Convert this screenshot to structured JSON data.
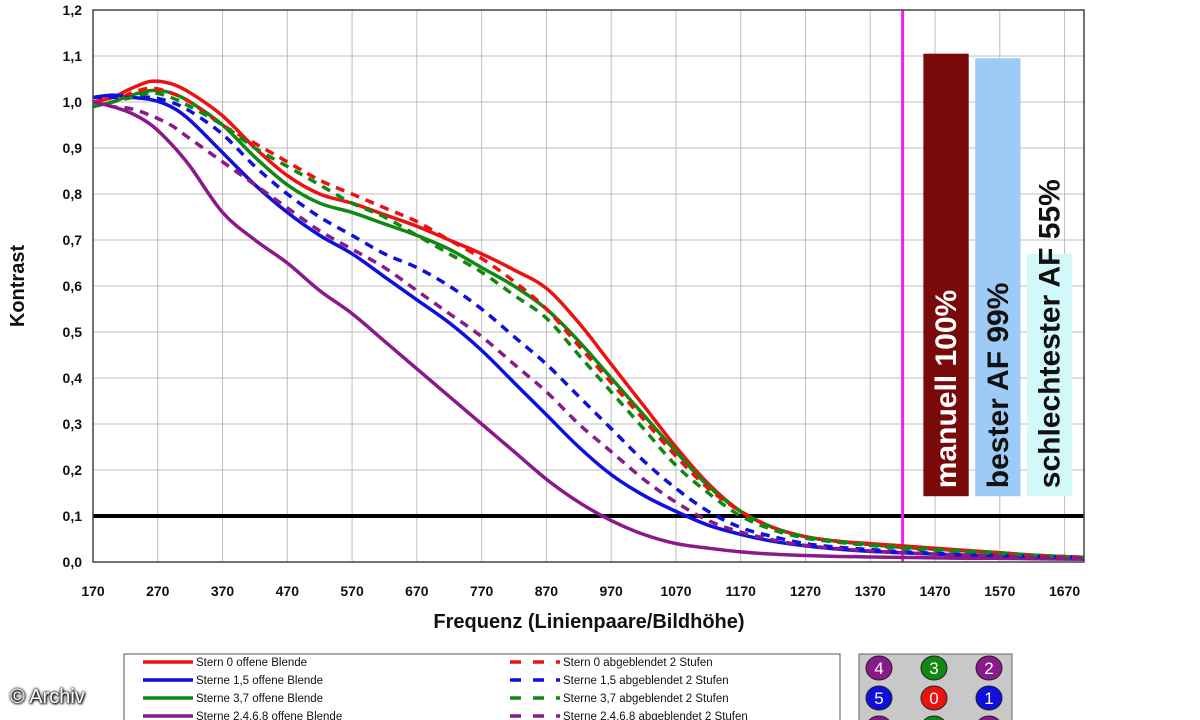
{
  "chart_data": {
    "type": "line",
    "ylabel": "Kontrast",
    "xlabel": "Frequenz (Linienpaare/Bildhöhe)",
    "xlim": [
      170,
      1700
    ],
    "ylim": [
      0,
      1.2
    ],
    "x_ticks": [
      "170",
      "270",
      "370",
      "470",
      "570",
      "670",
      "770",
      "870",
      "970",
      "1070",
      "1170",
      "1270",
      "1370",
      "1470",
      "1570",
      "1670"
    ],
    "y_ticks": [
      "0,0",
      "0,1",
      "0,2",
      "0,3",
      "0,4",
      "0,5",
      "0,6",
      "0,7",
      "0,8",
      "0,9",
      "1,0",
      "1,1",
      "1,2"
    ],
    "grid": true,
    "threshold_line": 0.1,
    "marker_line_x": 1420,
    "series": [
      {
        "name": "Stern 0 offene Blende",
        "color": "#ee1111",
        "dash": false,
        "x": [
          170,
          200,
          230,
          260,
          290,
          320,
          370,
          420,
          470,
          520,
          570,
          620,
          670,
          720,
          770,
          820,
          870,
          920,
          970,
          1020,
          1070,
          1120,
          1170,
          1220,
          1270,
          1320,
          1370,
          1420,
          1470,
          1520,
          1570,
          1620,
          1700
        ],
        "y": [
          1.0,
          1.01,
          1.03,
          1.045,
          1.04,
          1.02,
          0.97,
          0.9,
          0.84,
          0.8,
          0.78,
          0.755,
          0.73,
          0.7,
          0.67,
          0.635,
          0.595,
          0.52,
          0.43,
          0.34,
          0.25,
          0.17,
          0.11,
          0.075,
          0.055,
          0.045,
          0.04,
          0.035,
          0.03,
          0.025,
          0.02,
          0.015,
          0.01
        ]
      },
      {
        "name": "Sterne 1,5 offene Blende",
        "color": "#1010dd",
        "dash": false,
        "x": [
          170,
          200,
          230,
          260,
          290,
          320,
          370,
          420,
          470,
          520,
          570,
          620,
          670,
          720,
          770,
          820,
          870,
          920,
          970,
          1020,
          1070,
          1120,
          1170,
          1220,
          1270,
          1320,
          1370,
          1420,
          1470,
          1520,
          1570,
          1620,
          1700
        ],
        "y": [
          1.01,
          1.015,
          1.01,
          1.005,
          0.99,
          0.96,
          0.89,
          0.82,
          0.76,
          0.71,
          0.67,
          0.62,
          0.57,
          0.52,
          0.46,
          0.39,
          0.32,
          0.25,
          0.19,
          0.145,
          0.11,
          0.08,
          0.06,
          0.045,
          0.035,
          0.028,
          0.023,
          0.02,
          0.017,
          0.015,
          0.013,
          0.011,
          0.01
        ]
      },
      {
        "name": "Sterne 3,7 offene Blende",
        "color": "#118811",
        "dash": false,
        "x": [
          170,
          200,
          230,
          260,
          290,
          320,
          370,
          420,
          470,
          520,
          570,
          620,
          670,
          720,
          770,
          820,
          870,
          920,
          970,
          1020,
          1070,
          1120,
          1170,
          1220,
          1270,
          1320,
          1370,
          1420,
          1470,
          1520,
          1570,
          1620,
          1700
        ],
        "y": [
          0.99,
          1.0,
          1.015,
          1.025,
          1.02,
          1.0,
          0.95,
          0.88,
          0.82,
          0.78,
          0.76,
          0.735,
          0.71,
          0.68,
          0.64,
          0.6,
          0.55,
          0.48,
          0.4,
          0.32,
          0.24,
          0.165,
          0.11,
          0.075,
          0.055,
          0.045,
          0.038,
          0.032,
          0.028,
          0.024,
          0.02,
          0.015,
          0.01
        ]
      },
      {
        "name": "Sterne 2,4,6,8 offene Blende",
        "color": "#8a1a8a",
        "dash": false,
        "x": [
          170,
          200,
          230,
          260,
          290,
          320,
          370,
          420,
          470,
          520,
          570,
          620,
          670,
          720,
          770,
          820,
          870,
          920,
          970,
          1020,
          1070,
          1120,
          1170,
          1220,
          1270,
          1320,
          1370,
          1420,
          1470,
          1520,
          1570,
          1620,
          1700
        ],
        "y": [
          1.0,
          0.99,
          0.975,
          0.95,
          0.91,
          0.86,
          0.76,
          0.7,
          0.65,
          0.59,
          0.54,
          0.48,
          0.42,
          0.36,
          0.3,
          0.24,
          0.18,
          0.13,
          0.09,
          0.06,
          0.04,
          0.03,
          0.022,
          0.017,
          0.014,
          0.012,
          0.011,
          0.01,
          0.009,
          0.008,
          0.008,
          0.007,
          0.006
        ]
      },
      {
        "name": "Stern 0 abgeblendet 2 Stufen",
        "color": "#ee1111",
        "dash": true,
        "x": [
          170,
          200,
          230,
          260,
          290,
          320,
          370,
          420,
          470,
          520,
          570,
          620,
          670,
          720,
          770,
          820,
          870,
          920,
          970,
          1020,
          1070,
          1120,
          1170,
          1220,
          1270,
          1320,
          1370,
          1420,
          1470,
          1520,
          1570,
          1620,
          1700
        ],
        "y": [
          1.0,
          1.0,
          1.02,
          1.03,
          1.02,
          1.0,
          0.95,
          0.91,
          0.87,
          0.83,
          0.8,
          0.77,
          0.74,
          0.7,
          0.66,
          0.61,
          0.55,
          0.47,
          0.39,
          0.31,
          0.23,
          0.16,
          0.11,
          0.075,
          0.055,
          0.045,
          0.038,
          0.032,
          0.028,
          0.024,
          0.02,
          0.015,
          0.01
        ]
      },
      {
        "name": "Sterne 1,5 abgeblendet 2 Stufen",
        "color": "#1010dd",
        "dash": true,
        "x": [
          170,
          200,
          230,
          260,
          290,
          320,
          370,
          420,
          470,
          520,
          570,
          620,
          670,
          720,
          770,
          820,
          870,
          920,
          970,
          1020,
          1070,
          1120,
          1170,
          1220,
          1270,
          1320,
          1370,
          1420,
          1470,
          1520,
          1570,
          1620,
          1700
        ],
        "y": [
          1.01,
          1.01,
          1.01,
          1.01,
          1.0,
          0.98,
          0.93,
          0.86,
          0.8,
          0.75,
          0.71,
          0.67,
          0.64,
          0.6,
          0.55,
          0.49,
          0.43,
          0.36,
          0.29,
          0.22,
          0.16,
          0.11,
          0.075,
          0.055,
          0.04,
          0.032,
          0.027,
          0.022,
          0.019,
          0.016,
          0.014,
          0.012,
          0.01
        ]
      },
      {
        "name": "Sterne 3,7 abgeblendet 2 Stufen",
        "color": "#118811",
        "dash": true,
        "x": [
          170,
          200,
          230,
          260,
          290,
          320,
          370,
          420,
          470,
          520,
          570,
          620,
          670,
          720,
          770,
          820,
          870,
          920,
          970,
          1020,
          1070,
          1120,
          1170,
          1220,
          1270,
          1320,
          1370,
          1420,
          1470,
          1520,
          1570,
          1620,
          1700
        ],
        "y": [
          0.99,
          1.0,
          1.01,
          1.02,
          1.01,
          0.99,
          0.95,
          0.9,
          0.86,
          0.82,
          0.78,
          0.75,
          0.71,
          0.67,
          0.63,
          0.58,
          0.53,
          0.45,
          0.37,
          0.29,
          0.21,
          0.15,
          0.1,
          0.07,
          0.052,
          0.043,
          0.036,
          0.03,
          0.026,
          0.022,
          0.018,
          0.014,
          0.01
        ]
      },
      {
        "name": "Sterne 2,4,6,8 abgeblendet 2 Stufen",
        "color": "#8a1a8a",
        "dash": true,
        "x": [
          170,
          200,
          230,
          260,
          290,
          320,
          370,
          420,
          470,
          520,
          570,
          620,
          670,
          720,
          770,
          820,
          870,
          920,
          970,
          1020,
          1070,
          1120,
          1170,
          1220,
          1270,
          1320,
          1370,
          1420,
          1470,
          1520,
          1570,
          1620,
          1700
        ],
        "y": [
          1.0,
          0.99,
          0.985,
          0.97,
          0.95,
          0.92,
          0.87,
          0.82,
          0.77,
          0.72,
          0.68,
          0.64,
          0.59,
          0.54,
          0.49,
          0.43,
          0.37,
          0.3,
          0.24,
          0.18,
          0.13,
          0.09,
          0.065,
          0.048,
          0.036,
          0.029,
          0.024,
          0.02,
          0.017,
          0.014,
          0.012,
          0.01,
          0.008
        ]
      }
    ],
    "bars": [
      {
        "label": "manuell 100%",
        "color": "#7a0a0a",
        "text_color": "#ffffff",
        "x_start": 1452,
        "x_end": 1522,
        "value": 1.105
      },
      {
        "label": "bester AF 99%",
        "color": "#9ecbf5",
        "text_color": "#111111",
        "x_start": 1532,
        "x_end": 1602,
        "value": 1.095
      },
      {
        "label": "schlechtester AF 55%",
        "color": "#d2f8fa",
        "text_color": "#111111",
        "x_start": 1612,
        "x_end": 1682,
        "value": 0.67
      }
    ],
    "legend_position": "bottom",
    "star_grid": [
      {
        "label": "4",
        "color": "#8a1a8a"
      },
      {
        "label": "3",
        "color": "#118811"
      },
      {
        "label": "2",
        "color": "#8a1a8a"
      },
      {
        "label": "5",
        "color": "#1010dd"
      },
      {
        "label": "0",
        "color": "#ee1111"
      },
      {
        "label": "1",
        "color": "#1010dd"
      },
      {
        "label": "",
        "color": "#8a1a8a"
      },
      {
        "label": "",
        "color": "#118811"
      },
      {
        "label": "",
        "color": "#8a1a8a"
      }
    ]
  },
  "watermark": "© Archiv"
}
